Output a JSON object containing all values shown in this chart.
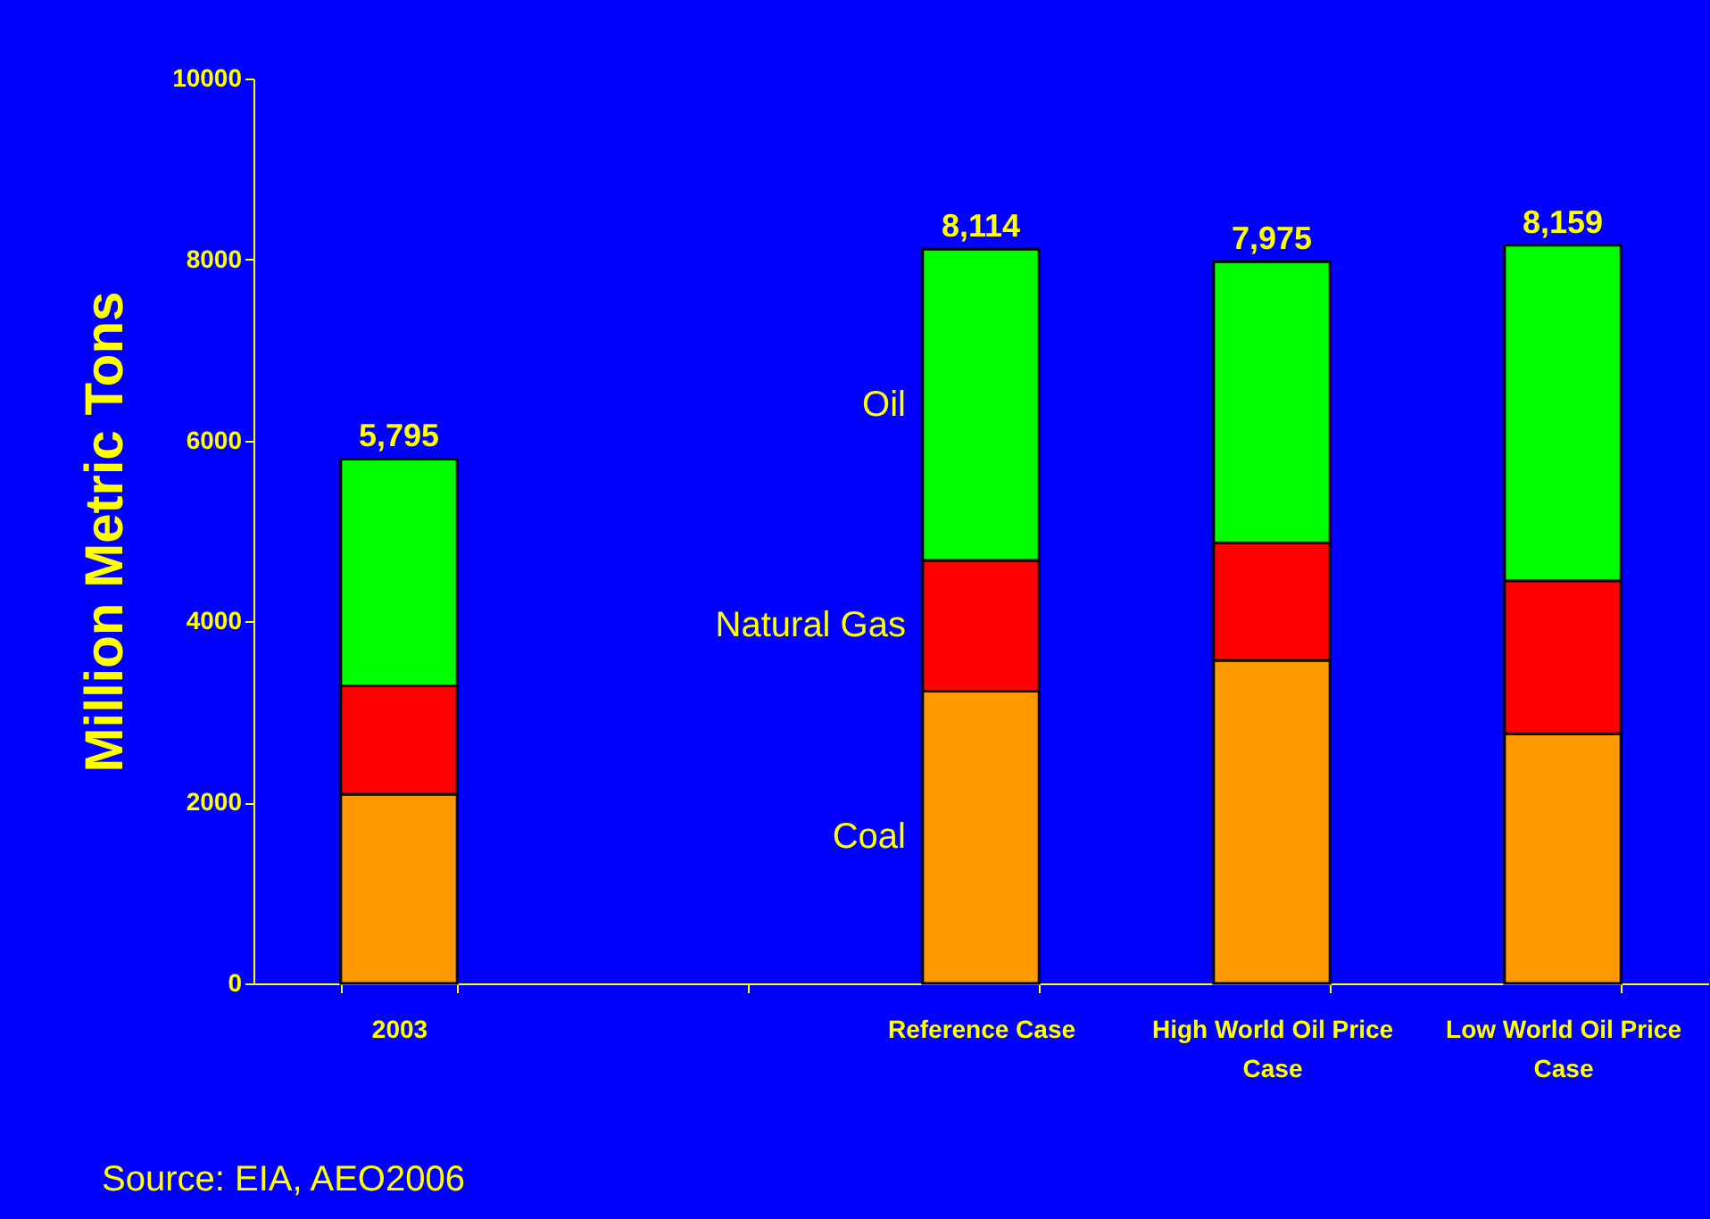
{
  "chart_data": {
    "type": "bar",
    "stacked": true,
    "ylabel": "Million Metric Tons",
    "categories": [
      "2003",
      null,
      "Reference Case",
      "High World Oil Price Case",
      "Low World Oil Price Case"
    ],
    "series": [
      {
        "name": "Coal",
        "color": "#ff9900",
        "values": [
          2090,
          null,
          3230,
          3570,
          2760
        ]
      },
      {
        "name": "Natural Gas",
        "color": "#ff0000",
        "values": [
          1200,
          null,
          1445,
          1300,
          1690
        ]
      },
      {
        "name": "Oil",
        "color": "#00ff00",
        "values": [
          2505,
          null,
          3439,
          3105,
          3709
        ]
      }
    ],
    "totals": [
      "5,795",
      null,
      "8,114",
      "7,975",
      "8,159"
    ],
    "ylim": [
      0,
      10000
    ],
    "yticks": [
      0,
      2000,
      4000,
      6000,
      8000,
      10000
    ],
    "grid": false,
    "annotations": [
      "Source:  EIA, AEO2006"
    ]
  }
}
